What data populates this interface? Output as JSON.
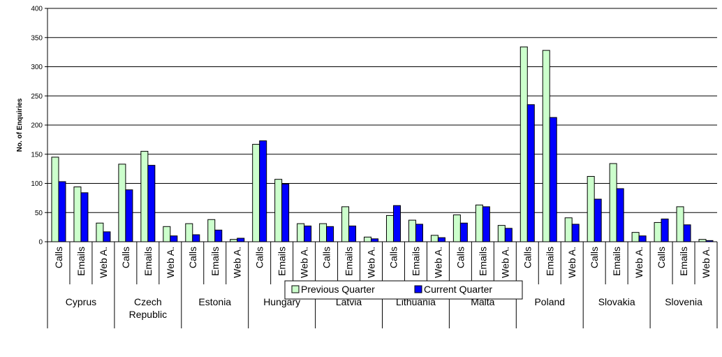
{
  "chart_data": {
    "type": "bar",
    "ylabel": "No. of Enquiries",
    "ylim": [
      0,
      400
    ],
    "yticks": [
      0,
      50,
      100,
      150,
      200,
      250,
      300,
      350,
      400
    ],
    "grid": true,
    "legend_position": "bottom",
    "categories": [
      "Calls",
      "Emails",
      "Web A."
    ],
    "groups": [
      {
        "name": "Cyprus",
        "label_lines": [
          "Cyprus"
        ],
        "previous": [
          145,
          94,
          32
        ],
        "current": [
          103,
          84,
          17
        ]
      },
      {
        "name": "Czech Republic",
        "label_lines": [
          "Czech",
          "Republic"
        ],
        "previous": [
          133,
          155,
          26
        ],
        "current": [
          89,
          131,
          10
        ]
      },
      {
        "name": "Estonia",
        "label_lines": [
          "Estonia"
        ],
        "previous": [
          31,
          38,
          4
        ],
        "current": [
          12,
          20,
          6
        ]
      },
      {
        "name": "Hungary",
        "label_lines": [
          "Hungary"
        ],
        "previous": [
          167,
          107,
          31
        ],
        "current": [
          173,
          99,
          27
        ]
      },
      {
        "name": "Latvia",
        "label_lines": [
          "Latvia"
        ],
        "previous": [
          31,
          60,
          8
        ],
        "current": [
          26,
          27,
          5
        ]
      },
      {
        "name": "Lithuania",
        "label_lines": [
          "Lithuania"
        ],
        "previous": [
          45,
          37,
          11
        ],
        "current": [
          62,
          30,
          7
        ]
      },
      {
        "name": "Malta",
        "label_lines": [
          "Malta"
        ],
        "previous": [
          46,
          63,
          28
        ],
        "current": [
          32,
          60,
          23
        ]
      },
      {
        "name": "Poland",
        "label_lines": [
          "Poland"
        ],
        "previous": [
          334,
          328,
          41
        ],
        "current": [
          235,
          213,
          30
        ]
      },
      {
        "name": "Slovakia",
        "label_lines": [
          "Slovakia"
        ],
        "previous": [
          112,
          134,
          16
        ],
        "current": [
          73,
          91,
          10
        ]
      },
      {
        "name": "Slovenia",
        "label_lines": [
          "Slovenia"
        ],
        "previous": [
          33,
          60,
          4
        ],
        "current": [
          39,
          29,
          2
        ]
      }
    ],
    "series": [
      {
        "name": "Previous Quarter",
        "key": "previous",
        "color": "#ccffcc"
      },
      {
        "name": "Current Quarter",
        "key": "current",
        "color": "#0000ff"
      }
    ]
  }
}
